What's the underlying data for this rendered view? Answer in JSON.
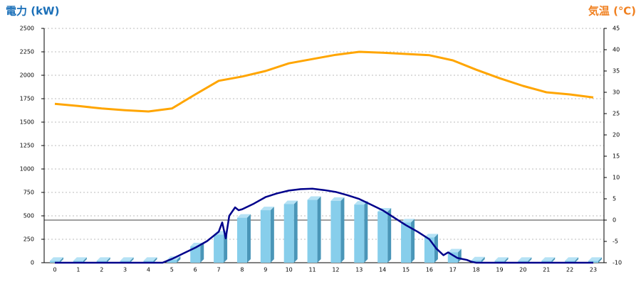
{
  "chart_data": {
    "type": "bar",
    "ylabel": "電力 (kW)",
    "y2label": "気温 (℃)",
    "categories": [
      "0",
      "1",
      "2",
      "3",
      "4",
      "5",
      "6",
      "7",
      "8",
      "9",
      "10",
      "11",
      "12",
      "13",
      "14",
      "15",
      "16",
      "17",
      "18",
      "19",
      "20",
      "21",
      "22",
      "23"
    ],
    "series": [
      {
        "type": "bar",
        "color": "#87ceeb",
        "values": [
          20,
          20,
          20,
          20,
          20,
          30,
          175,
          300,
          480,
          560,
          625,
          670,
          660,
          620,
          545,
          430,
          270,
          110,
          25,
          20,
          20,
          20,
          20,
          20
        ]
      },
      {
        "type": "line",
        "color": "#00008b",
        "x": [
          0,
          4,
          4.6,
          5,
          5.5,
          6,
          6.5,
          7,
          7.15,
          7.3,
          7.45,
          7.7,
          7.85,
          8,
          8.5,
          9,
          9.5,
          10,
          10.5,
          11,
          11.5,
          12,
          12.5,
          13,
          13.5,
          14,
          14.5,
          15,
          15.5,
          16,
          16.3,
          16.6,
          16.8,
          17,
          17.2,
          17.4,
          17.6,
          17.8,
          18,
          23
        ],
        "values": [
          0,
          0,
          0,
          40,
          100,
          160,
          230,
          330,
          430,
          260,
          500,
          590,
          560,
          570,
          630,
          700,
          740,
          770,
          785,
          790,
          775,
          755,
          720,
          680,
          620,
          560,
          480,
          400,
          330,
          250,
          150,
          80,
          110,
          80,
          50,
          40,
          30,
          10,
          0,
          0
        ]
      },
      {
        "type": "line",
        "axis": "y2",
        "color": "#ffa500",
        "values": [
          27.3,
          26.8,
          26.2,
          25.8,
          25.5,
          26.2,
          29.5,
          32.7,
          33.7,
          35,
          36.8,
          37.8,
          38.8,
          39.5,
          39.3,
          39,
          38.7,
          37.5,
          35.3,
          33.3,
          31.5,
          30,
          29.5,
          28.8
        ]
      }
    ],
    "ylim": [
      0,
      2500
    ],
    "yticks": [
      0,
      250,
      500,
      750,
      1000,
      1250,
      1500,
      1750,
      2000,
      2250,
      2500
    ],
    "y2lim": [
      -10,
      45
    ],
    "y2ticks": [
      -10,
      -5,
      0,
      5,
      10,
      15,
      20,
      25,
      30,
      35,
      40,
      45
    ],
    "reference_line": {
      "axis": "y2",
      "value": 0
    },
    "grid": true
  }
}
